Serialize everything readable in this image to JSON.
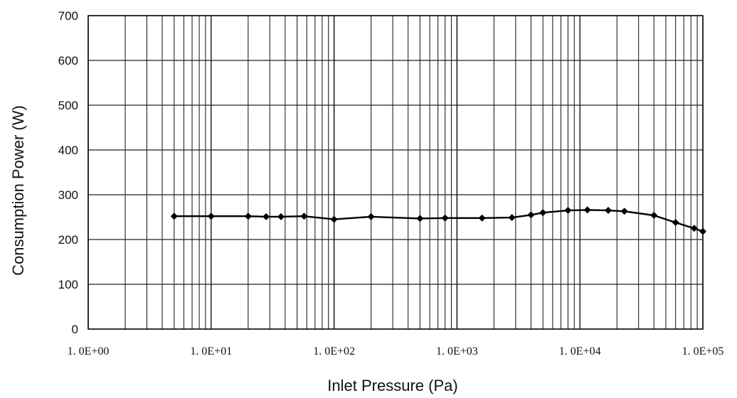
{
  "chart_data": {
    "type": "line",
    "title": "",
    "xlabel": "Inlet Pressure (Pa)",
    "ylabel": "Consumption Power (W)",
    "x_scale": "log",
    "xlim": [
      1,
      100000
    ],
    "ylim": [
      0,
      700
    ],
    "y_ticks": [
      0,
      100,
      200,
      300,
      400,
      500,
      600,
      700
    ],
    "x_ticks": [
      1,
      10,
      100,
      1000,
      10000,
      100000
    ],
    "x_tick_labels": [
      "1. 0E+00",
      "1. 0E+01",
      "1. 0E+02",
      "1. 0E+03",
      "1. 0E+04",
      "1. 0E+05"
    ],
    "grid": true,
    "legend": "none",
    "line_color": "#000000",
    "series": [
      {
        "x": [
          5,
          10,
          20,
          28,
          37,
          57,
          100,
          200,
          500,
          800,
          1600,
          2800,
          4000,
          5000,
          8000,
          11500,
          17000,
          23000,
          40000,
          60000,
          85000,
          100000
        ],
        "y": [
          252,
          252,
          252,
          251,
          251,
          252,
          245,
          251,
          247,
          248,
          248,
          249,
          255,
          260,
          265,
          266,
          265,
          263,
          254,
          238,
          225,
          218
        ]
      }
    ]
  }
}
